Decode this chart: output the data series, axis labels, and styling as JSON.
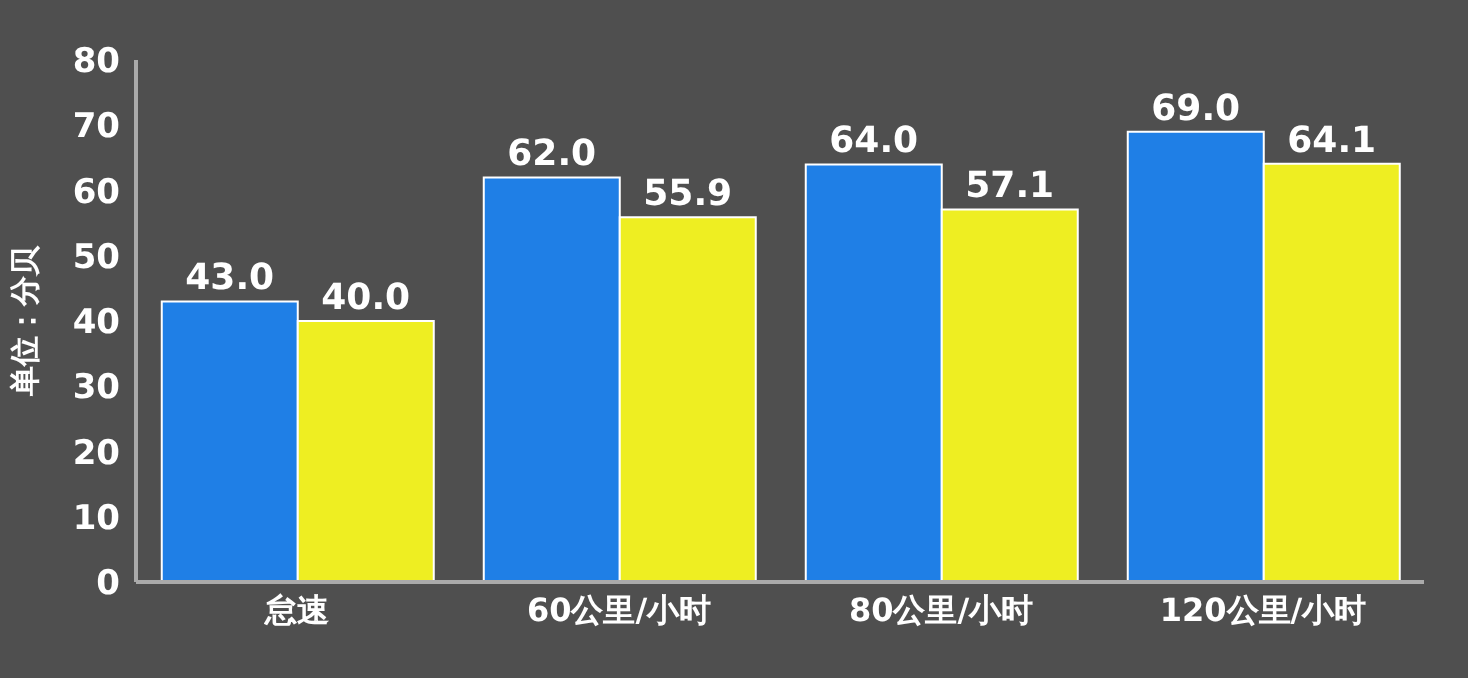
{
  "chart_data": {
    "type": "bar",
    "ylabel": "单位：分贝",
    "categories": [
      "怠速",
      "60公里/小时",
      "80公里/小时",
      "120公里/小时"
    ],
    "series": [
      {
        "color": "#1f7fe6",
        "values": [
          43,
          62,
          64,
          69
        ],
        "value_labels": [
          "43.0",
          "62.0",
          "64.0",
          "69.0"
        ]
      },
      {
        "color": "#eeee22",
        "values": [
          40,
          55.9,
          57.1,
          64.1
        ],
        "value_labels": [
          "40.0",
          "55.9",
          "57.1",
          "64.1"
        ]
      }
    ],
    "ylim": [
      0,
      80
    ],
    "yticks": [
      0,
      10,
      20,
      30,
      40,
      50,
      60,
      70,
      80
    ],
    "grid": false,
    "legend": false
  }
}
